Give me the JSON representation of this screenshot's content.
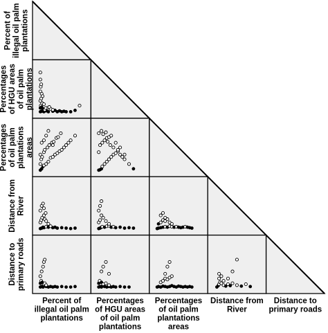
{
  "chart_data": {
    "type": "scatter",
    "subtype": "scatterplot-matrix",
    "layout": "lower-triangle",
    "variables": [
      "Percent of illegal oil palm plantations",
      "Percentages of HGU areas of oil palm plantations",
      "Percentages of oil palm plantations areas",
      "Distance from River",
      "Distance to primary roads"
    ],
    "row_labels": [
      [
        "Percent of",
        "illegal oil palm",
        "plantations"
      ],
      [
        "Percentages",
        "of HGU areas",
        "of oil palm",
        "plantations"
      ],
      [
        "Percentages",
        "of oil palm",
        "plantations",
        "areas"
      ],
      [
        "Distance from",
        "River"
      ],
      [
        "Distance to",
        "primary roads"
      ]
    ],
    "column_labels": [
      [
        "Percent of",
        "illegal oil palm",
        "plantations"
      ],
      [
        "Percentages",
        "of HGU areas",
        "of oil palm",
        "plantations"
      ],
      [
        "Percentages",
        "of oil palm",
        "plantations",
        "areas"
      ],
      [
        "Distance from",
        "River"
      ],
      [
        "Distance to",
        "primary roads"
      ]
    ],
    "panels": [
      {
        "row": 1,
        "col": 0,
        "x": [
          0.02,
          0.05,
          0.1,
          0.15,
          0.2,
          0.3,
          0.4,
          0.5,
          0.6,
          0.8,
          0.02,
          0.03,
          0.05,
          0.08,
          0.12,
          0.18,
          0.25,
          0.35,
          0.45,
          0.55,
          0.7,
          0.9,
          0.02,
          0.04,
          0.06,
          0.1,
          0.14,
          0.22,
          0.3,
          0.02,
          0.03,
          0.05,
          0.07,
          0.02,
          0.04,
          0.02
        ],
        "y": [
          0.02,
          0.03,
          0.02,
          0.04,
          0.02,
          0.03,
          0.02,
          0.02,
          0.02,
          0.05,
          0.1,
          0.15,
          0.12,
          0.08,
          0.06,
          0.1,
          0.08,
          0.05,
          0.04,
          0.03,
          0.02,
          0.15,
          0.25,
          0.3,
          0.2,
          0.18,
          0.1,
          0.12,
          0.06,
          0.45,
          0.55,
          0.4,
          0.35,
          0.7,
          0.6,
          0.85
        ]
      },
      {
        "row": 2,
        "col": 0,
        "x": [
          0.02,
          0.05,
          0.08,
          0.1,
          0.15,
          0.2,
          0.25,
          0.3,
          0.35,
          0.4,
          0.45,
          0.5,
          0.55,
          0.6,
          0.65,
          0.7,
          0.8,
          0.02,
          0.04,
          0.06,
          0.1,
          0.12,
          0.18,
          0.22,
          0.28,
          0.32,
          0.38,
          0.42,
          0.48,
          0.02,
          0.05,
          0.1,
          0.15,
          0.2,
          0.3
        ],
        "y": [
          0.02,
          0.05,
          0.1,
          0.12,
          0.15,
          0.2,
          0.28,
          0.3,
          0.35,
          0.38,
          0.42,
          0.45,
          0.5,
          0.55,
          0.6,
          0.65,
          0.75,
          0.15,
          0.25,
          0.3,
          0.4,
          0.45,
          0.5,
          0.55,
          0.6,
          0.62,
          0.7,
          0.72,
          0.8,
          0.35,
          0.6,
          0.65,
          0.75,
          0.85,
          0.55
        ]
      },
      {
        "row": 2,
        "col": 1,
        "x": [
          0.02,
          0.05,
          0.08,
          0.1,
          0.15,
          0.2,
          0.25,
          0.3,
          0.35,
          0.4,
          0.45,
          0.5,
          0.55,
          0.6,
          0.7,
          0.8,
          0.02,
          0.05,
          0.1,
          0.15,
          0.2,
          0.25,
          0.3,
          0.4,
          0.5,
          0.02,
          0.08,
          0.12,
          0.18,
          0.22,
          0.28,
          0.35,
          0.45,
          0.6
        ],
        "y": [
          0.02,
          0.03,
          0.05,
          0.1,
          0.15,
          0.2,
          0.25,
          0.3,
          0.35,
          0.38,
          0.42,
          0.35,
          0.3,
          0.25,
          0.15,
          0.05,
          0.4,
          0.55,
          0.6,
          0.65,
          0.7,
          0.72,
          0.75,
          0.6,
          0.5,
          0.8,
          0.85,
          0.78,
          0.82,
          0.62,
          0.55,
          0.5,
          0.45,
          0.35
        ]
      },
      {
        "row": 3,
        "col": 0,
        "x": [
          0.02,
          0.05,
          0.08,
          0.1,
          0.15,
          0.2,
          0.25,
          0.3,
          0.35,
          0.4,
          0.5,
          0.6,
          0.7,
          0.8,
          0.02,
          0.04,
          0.06,
          0.1,
          0.12,
          0.15,
          0.2,
          0.02,
          0.05,
          0.08,
          0.1,
          0.14
        ],
        "y": [
          0.02,
          0.03,
          0.05,
          0.04,
          0.06,
          0.05,
          0.07,
          0.04,
          0.05,
          0.03,
          0.04,
          0.03,
          0.02,
          0.03,
          0.15,
          0.2,
          0.25,
          0.3,
          0.22,
          0.18,
          0.12,
          0.4,
          0.5,
          0.55,
          0.45,
          0.35
        ]
      },
      {
        "row": 3,
        "col": 1,
        "x": [
          0.02,
          0.05,
          0.08,
          0.1,
          0.15,
          0.2,
          0.25,
          0.3,
          0.35,
          0.4,
          0.5,
          0.6,
          0.7,
          0.8,
          0.02,
          0.05,
          0.08,
          0.12,
          0.18,
          0.25,
          0.02,
          0.05,
          0.08
        ],
        "y": [
          0.02,
          0.03,
          0.05,
          0.06,
          0.05,
          0.07,
          0.08,
          0.05,
          0.06,
          0.04,
          0.05,
          0.03,
          0.04,
          0.03,
          0.15,
          0.2,
          0.3,
          0.25,
          0.18,
          0.12,
          0.4,
          0.5,
          0.6
        ]
      },
      {
        "row": 3,
        "col": 2,
        "x": [
          0.02,
          0.05,
          0.1,
          0.15,
          0.2,
          0.25,
          0.3,
          0.35,
          0.4,
          0.45,
          0.5,
          0.55,
          0.6,
          0.65,
          0.7,
          0.75,
          0.8,
          0.05,
          0.1,
          0.15,
          0.2,
          0.25,
          0.3,
          0.35,
          0.1,
          0.15,
          0.2
        ],
        "y": [
          0.02,
          0.03,
          0.04,
          0.05,
          0.06,
          0.05,
          0.07,
          0.06,
          0.05,
          0.06,
          0.05,
          0.04,
          0.05,
          0.06,
          0.05,
          0.04,
          0.03,
          0.12,
          0.15,
          0.2,
          0.18,
          0.22,
          0.15,
          0.12,
          0.3,
          0.35,
          0.25
        ]
      },
      {
        "row": 4,
        "col": 0,
        "x": [
          0.02,
          0.05,
          0.08,
          0.1,
          0.15,
          0.2,
          0.25,
          0.3,
          0.35,
          0.4,
          0.5,
          0.6,
          0.7,
          0.8,
          0.02,
          0.04,
          0.06,
          0.1,
          0.12,
          0.15,
          0.02,
          0.05,
          0.08,
          0.1,
          0.12
        ],
        "y": [
          0.02,
          0.03,
          0.02,
          0.04,
          0.03,
          0.02,
          0.03,
          0.02,
          0.03,
          0.02,
          0.03,
          0.02,
          0.02,
          0.03,
          0.1,
          0.15,
          0.12,
          0.08,
          0.1,
          0.06,
          0.25,
          0.35,
          0.45,
          0.55,
          0.6
        ]
      },
      {
        "row": 4,
        "col": 1,
        "x": [
          0.02,
          0.05,
          0.08,
          0.1,
          0.15,
          0.2,
          0.25,
          0.3,
          0.35,
          0.4,
          0.5,
          0.6,
          0.7,
          0.02,
          0.04,
          0.08,
          0.12,
          0.18,
          0.25,
          0.08,
          0.12,
          0.18,
          0.25
        ],
        "y": [
          0.02,
          0.03,
          0.02,
          0.04,
          0.03,
          0.02,
          0.03,
          0.02,
          0.03,
          0.02,
          0.03,
          0.02,
          0.02,
          0.1,
          0.15,
          0.12,
          0.08,
          0.1,
          0.06,
          0.35,
          0.45,
          0.55,
          0.3
        ]
      },
      {
        "row": 4,
        "col": 2,
        "x": [
          0.02,
          0.05,
          0.1,
          0.15,
          0.2,
          0.25,
          0.3,
          0.35,
          0.4,
          0.45,
          0.5,
          0.55,
          0.6,
          0.65,
          0.7,
          0.75,
          0.8,
          0.1,
          0.15,
          0.2,
          0.25,
          0.3,
          0.35,
          0.2,
          0.25,
          0.3
        ],
        "y": [
          0.02,
          0.03,
          0.02,
          0.04,
          0.03,
          0.02,
          0.03,
          0.05,
          0.03,
          0.02,
          0.04,
          0.03,
          0.02,
          0.03,
          0.02,
          0.03,
          0.02,
          0.12,
          0.15,
          0.2,
          0.18,
          0.22,
          0.25,
          0.3,
          0.45,
          0.55
        ]
      },
      {
        "row": 4,
        "col": 3,
        "x": [
          0.05,
          0.08,
          0.1,
          0.12,
          0.15,
          0.2,
          0.25,
          0.3,
          0.35,
          0.4,
          0.5,
          0.6,
          0.7,
          0.8,
          0.1,
          0.15,
          0.2,
          0.1,
          0.3,
          0.4,
          0.5
        ],
        "y": [
          0.02,
          0.05,
          0.08,
          0.12,
          0.1,
          0.06,
          0.04,
          0.08,
          0.05,
          0.1,
          0.06,
          0.04,
          0.08,
          0.03,
          0.2,
          0.25,
          0.15,
          0.3,
          0.2,
          0.35,
          0.6
        ]
      }
    ]
  }
}
